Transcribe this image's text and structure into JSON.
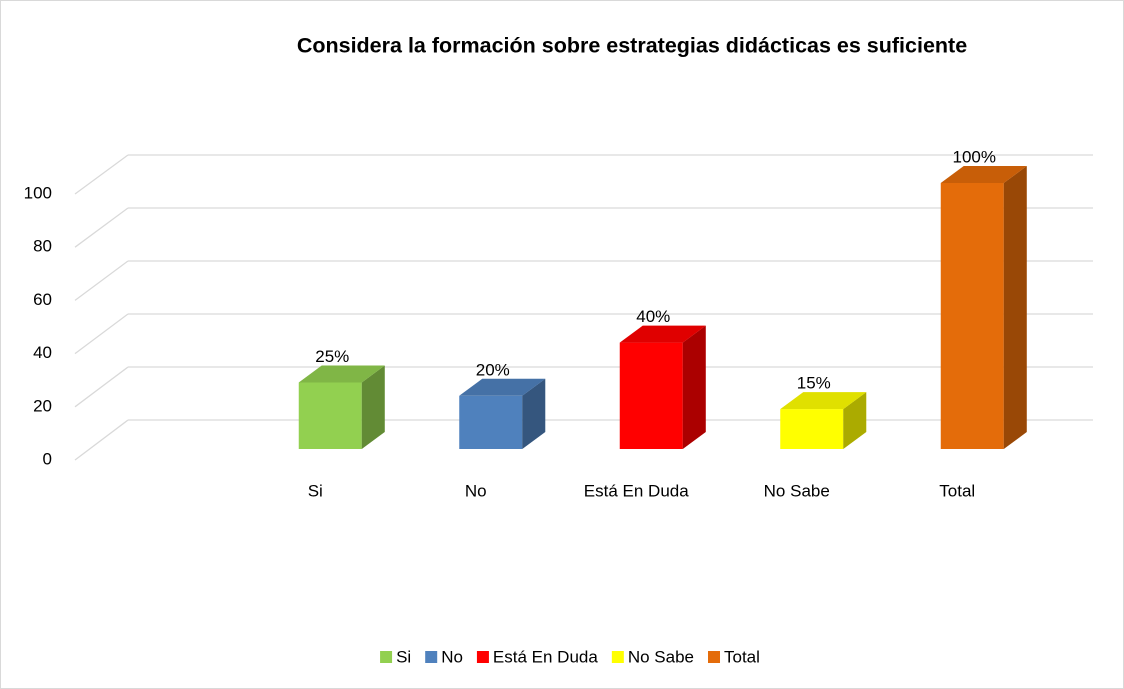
{
  "chart_data": {
    "type": "bar3d",
    "title": "Considera la formación sobre estrategias didácticas es suficiente",
    "categories": [
      "Si",
      "No",
      "Está En Duda",
      "No Sabe",
      "Total"
    ],
    "values": [
      25,
      20,
      40,
      15,
      100
    ],
    "value_labels": [
      "25%",
      "20%",
      "40%",
      "15%",
      "100%"
    ],
    "colors": [
      "#92d050",
      "#4f81bd",
      "#ff0000",
      "#ffff00",
      "#e46c0a"
    ],
    "ylim": [
      0,
      100
    ],
    "yticks": [
      0,
      20,
      40,
      60,
      80,
      100
    ],
    "grid": true,
    "legend": "bottom"
  }
}
